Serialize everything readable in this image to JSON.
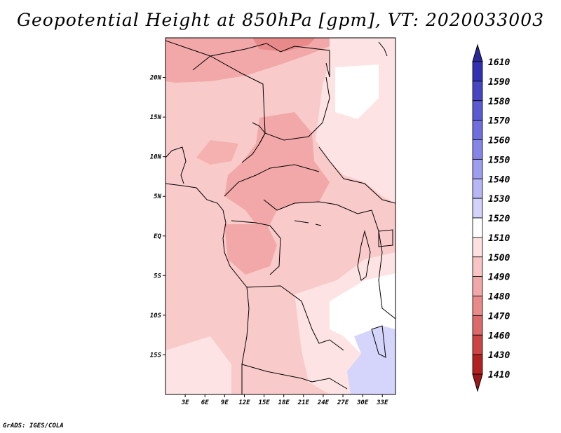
{
  "title": "Geopotential Height at 850hPa [gpm], VT: 2020033003",
  "credit": "GrADS: IGES/COLA",
  "map": {
    "lat_ticks": [
      {
        "label": "20N",
        "lat": 20
      },
      {
        "label": "15N",
        "lat": 15
      },
      {
        "label": "10N",
        "lat": 10
      },
      {
        "label": "5N",
        "lat": 5
      },
      {
        "label": "EQ",
        "lat": 0
      },
      {
        "label": "5S",
        "lat": -5
      },
      {
        "label": "10S",
        "lat": -10
      },
      {
        "label": "15S",
        "lat": -15
      }
    ],
    "lon_ticks": [
      {
        "label": "3E",
        "lon": 3
      },
      {
        "label": "6E",
        "lon": 6
      },
      {
        "label": "9E",
        "lon": 9
      },
      {
        "label": "12E",
        "lon": 12
      },
      {
        "label": "15E",
        "lon": 15
      },
      {
        "label": "18E",
        "lon": 18
      },
      {
        "label": "21E",
        "lon": 21
      },
      {
        "label": "24E",
        "lon": 24
      },
      {
        "label": "27E",
        "lon": 27
      },
      {
        "label": "30E",
        "lon": 30
      },
      {
        "label": "33E",
        "lon": 33
      }
    ],
    "extent": {
      "lon_min": 0,
      "lon_max": 35,
      "lat_min": -20,
      "lat_max": 25
    }
  },
  "colorbar": {
    "labels": [
      "1610",
      "1590",
      "1580",
      "1570",
      "1560",
      "1550",
      "1540",
      "1530",
      "1520",
      "1510",
      "1500",
      "1490",
      "1480",
      "1470",
      "1460",
      "1430",
      "1410"
    ],
    "colors": [
      "#28289a",
      "#3232b0",
      "#4646c2",
      "#5a5ad2",
      "#6e6ede",
      "#8585e8",
      "#9e9ef0",
      "#b7b7f5",
      "#d2d2fa",
      "#ffffff",
      "#fde0e0",
      "#f8c4c4",
      "#f2a8a8",
      "#e98a8a",
      "#dd6a6a",
      "#cc4444",
      "#b22020",
      "#9c1818"
    ]
  },
  "colors": {
    "rank_pink": "#f9caca",
    "mid_pink": "#f5b0b0",
    "light_pink": "#fde3e3",
    "white": "#ffffff",
    "lavender": "#d5d5fb"
  }
}
